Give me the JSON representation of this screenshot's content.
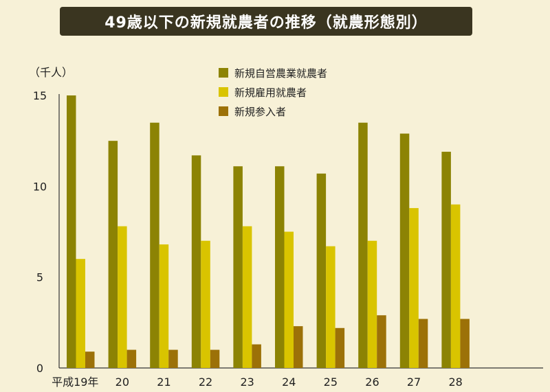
{
  "title": "49歳以下の新規就農者の推移（就農形態別）",
  "unit_label": "（千人）",
  "colors": {
    "self_employed": "#8c8304",
    "employed": "#d9c400",
    "new_entrant": "#9c7108",
    "background": "#f7f1d7",
    "title_bg": "#3a3520"
  },
  "chart_data": {
    "type": "bar",
    "categories": [
      "平成19年",
      "20",
      "21",
      "22",
      "23",
      "24",
      "25",
      "26",
      "27",
      "28"
    ],
    "series": [
      {
        "name": "新規自営農業就農者",
        "values": [
          15.0,
          12.5,
          13.5,
          11.7,
          11.1,
          11.1,
          10.7,
          13.5,
          12.9,
          11.9
        ]
      },
      {
        "name": "新規雇用就農者",
        "values": [
          6.0,
          7.8,
          6.8,
          7.0,
          7.8,
          7.5,
          6.7,
          7.0,
          8.8,
          9.0
        ]
      },
      {
        "name": "新規参入者",
        "values": [
          0.9,
          1.0,
          1.0,
          1.0,
          1.3,
          2.3,
          2.2,
          2.9,
          2.7,
          2.7
        ]
      }
    ],
    "yticks": [
      0,
      5,
      10,
      15
    ],
    "ylim": [
      0,
      15
    ],
    "legend_position": "top-center",
    "grid": false
  }
}
